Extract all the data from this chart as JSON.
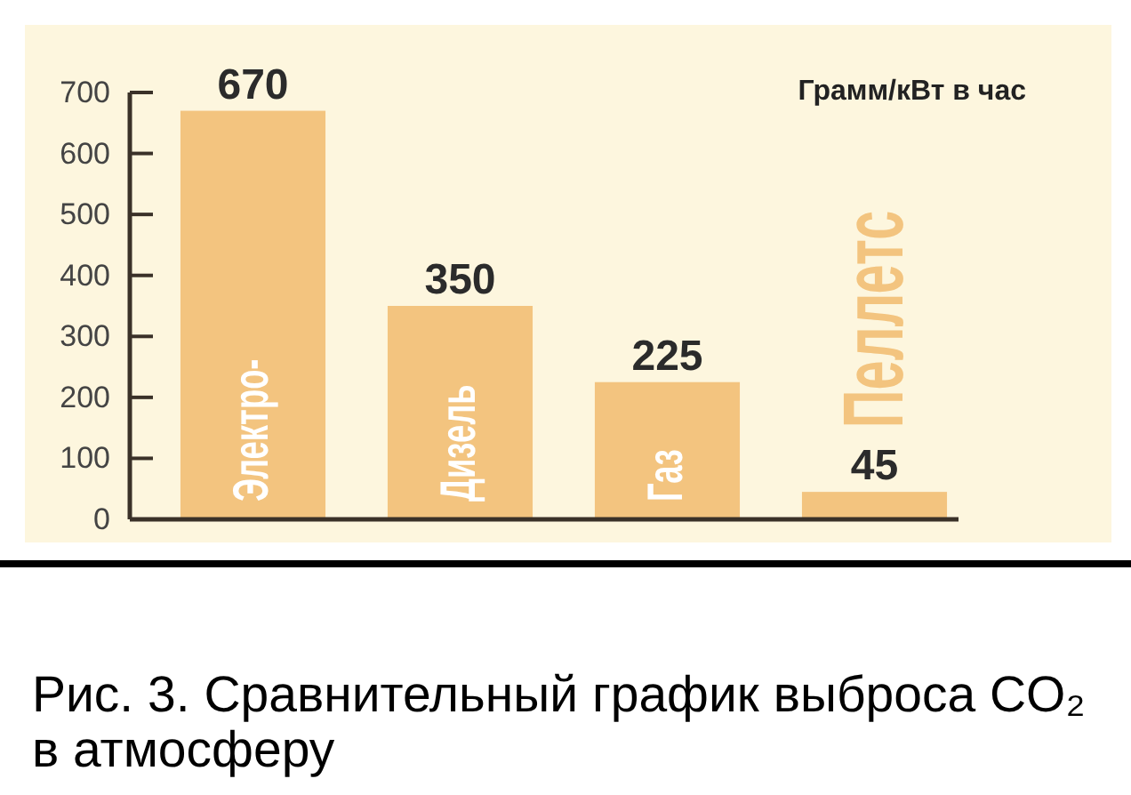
{
  "chart_data": {
    "type": "bar",
    "ylabel": "Грамм/кВт в час",
    "categories": [
      "Электро-",
      "Дизель",
      "Газ",
      "Пеллетс"
    ],
    "values": [
      670,
      350,
      225,
      45
    ],
    "color": "#f3c47f",
    "ylim": [
      0,
      700
    ],
    "yticks": [
      0,
      100,
      200,
      300,
      400,
      500,
      600,
      700
    ],
    "data_labels": true,
    "annotations": [
      "Рис. 3. Сравнительный график выброса CO₂ в атмосферу"
    ]
  }
}
